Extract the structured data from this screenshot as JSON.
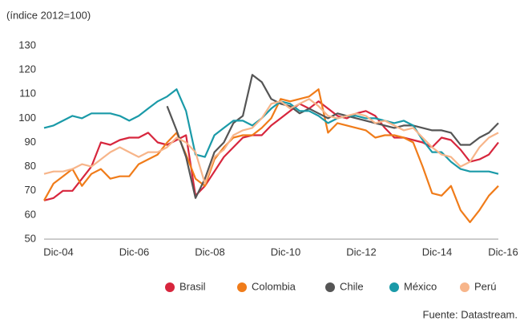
{
  "chart_data": {
    "type": "line",
    "subtitle": "(índice 2012=100)",
    "source": "Fuente: Datastream.",
    "categories": [
      "Dic-04",
      null,
      null,
      null,
      null,
      null,
      null,
      null,
      "Dic-06",
      null,
      null,
      null,
      null,
      null,
      null,
      null,
      "Dic-08",
      null,
      null,
      null,
      null,
      null,
      null,
      null,
      "Dic-10",
      null,
      null,
      null,
      null,
      null,
      null,
      null,
      "Dic-12",
      null,
      null,
      null,
      null,
      null,
      null,
      null,
      "Dic-14",
      null,
      null,
      null,
      null,
      null,
      null,
      null,
      "Dic-16"
    ],
    "ylim": [
      50,
      130
    ],
    "yticks": [
      50,
      60,
      70,
      80,
      90,
      100,
      110,
      120,
      130
    ],
    "grid": false,
    "legend": "bottom",
    "series": [
      {
        "name": "Brasil",
        "color": "#d7263d",
        "values": [
          66,
          67,
          70,
          70,
          75,
          80,
          90,
          89,
          91,
          92,
          92,
          94,
          90,
          89,
          91,
          93,
          68,
          72,
          78,
          84,
          88,
          92,
          93,
          93,
          97,
          100,
          103,
          106,
          104,
          107,
          104,
          101,
          100,
          102,
          103,
          101,
          96,
          92,
          92,
          91,
          90,
          88,
          92,
          91,
          87,
          82,
          83,
          85,
          90
        ]
      },
      {
        "name": "Colombia",
        "color": "#f07c1a",
        "values": [
          66,
          73,
          76,
          79,
          72,
          77,
          79,
          75,
          76,
          76,
          81,
          83,
          85,
          90,
          94,
          85,
          75,
          72,
          83,
          88,
          92,
          93,
          93,
          96,
          100,
          108,
          107,
          108,
          109,
          112,
          94,
          98,
          97,
          96,
          95,
          92,
          93,
          93,
          92,
          90,
          80,
          69,
          68,
          72,
          62,
          57,
          62,
          68,
          72
        ]
      },
      {
        "name": "Chile",
        "color": "#555555",
        "values": [
          null,
          null,
          null,
          null,
          null,
          null,
          null,
          null,
          null,
          null,
          null,
          null,
          null,
          105,
          95,
          84,
          67,
          75,
          86,
          90,
          98,
          101,
          118,
          115,
          108,
          106,
          105,
          102,
          104,
          102,
          100,
          102,
          101,
          100,
          99,
          98,
          97,
          96,
          97,
          97,
          96,
          95,
          95,
          94,
          89,
          89,
          92,
          94,
          98
        ]
      },
      {
        "name": "México",
        "color": "#1a9aa8",
        "values": [
          96,
          97,
          99,
          101,
          100,
          102,
          102,
          102,
          101,
          99,
          101,
          104,
          107,
          109,
          112,
          103,
          85,
          84,
          93,
          96,
          99,
          99,
          97,
          100,
          104,
          107,
          106,
          103,
          103,
          101,
          98,
          100,
          101,
          101,
          100,
          100,
          99,
          98,
          99,
          97,
          91,
          86,
          86,
          82,
          79,
          78,
          78,
          78,
          77
        ]
      },
      {
        "name": "Perú",
        "color": "#f7b58a",
        "values": [
          77,
          78,
          78,
          79,
          81,
          80,
          83,
          86,
          88,
          86,
          84,
          86,
          86,
          88,
          92,
          90,
          86,
          73,
          84,
          87,
          93,
          95,
          96,
          100,
          106,
          107,
          104,
          106,
          108,
          105,
          101,
          100,
          101,
          102,
          101,
          98,
          99,
          97,
          95,
          96,
          92,
          88,
          85,
          84,
          80,
          82,
          88,
          92,
          94
        ]
      }
    ]
  }
}
